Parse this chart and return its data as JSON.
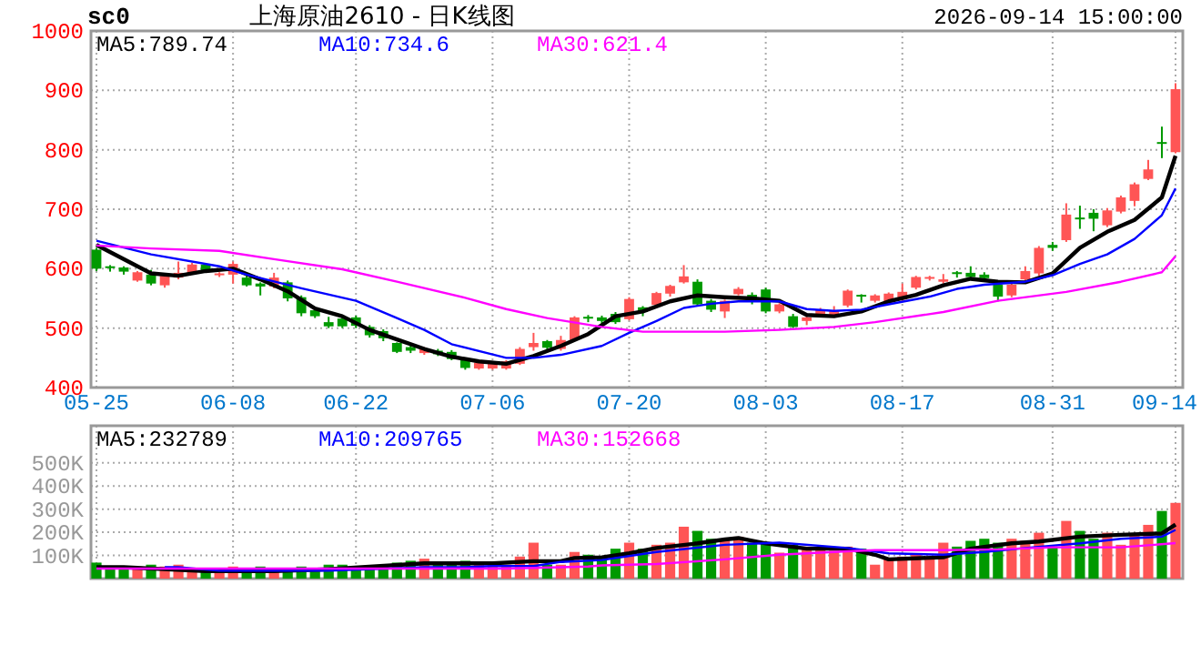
{
  "chart_data": [
    {
      "type": "candlestick",
      "title": "上海原油2610 - 日K线图",
      "subtitle": "sc0",
      "annotations": [
        "2026-09-14 15:00:00"
      ],
      "categories": [
        "05-25",
        null,
        null,
        null,
        null,
        null,
        null,
        null,
        null,
        null,
        "06-08",
        null,
        null,
        null,
        null,
        null,
        null,
        null,
        null,
        "06-22",
        null,
        null,
        null,
        null,
        null,
        null,
        null,
        null,
        null,
        "07-06",
        null,
        null,
        null,
        null,
        null,
        null,
        null,
        null,
        null,
        "07-20",
        null,
        null,
        null,
        null,
        null,
        null,
        null,
        null,
        null,
        "08-03",
        null,
        null,
        null,
        null,
        null,
        null,
        null,
        null,
        null,
        "08-17",
        null,
        null,
        null,
        null,
        null,
        null,
        null,
        null,
        null,
        null,
        "08-31",
        null,
        null,
        null,
        null,
        null,
        null,
        null,
        null,
        "09-14"
      ],
      "ohlc": [
        [
          632,
          635,
          596,
          600
        ],
        [
          604,
          606,
          595,
          602
        ],
        [
          602,
          604,
          590,
          595
        ],
        [
          580,
          596,
          578,
          594
        ],
        [
          590,
          598,
          572,
          575
        ],
        [
          572,
          590,
          568,
          588
        ],
        [
          585,
          612,
          582,
          593
        ],
        [
          592,
          610,
          590,
          607
        ],
        [
          607,
          608,
          594,
          595
        ],
        [
          589,
          594,
          586,
          592
        ],
        [
          590,
          612,
          575,
          608
        ],
        [
          585,
          590,
          570,
          572
        ],
        [
          575,
          577,
          555,
          570
        ],
        [
          570,
          593,
          567,
          585
        ],
        [
          577,
          580,
          545,
          550
        ],
        [
          552,
          555,
          520,
          525
        ],
        [
          530,
          531,
          517,
          520
        ],
        [
          510,
          519,
          500,
          503
        ],
        [
          516,
          520,
          500,
          503
        ],
        [
          518,
          521,
          500,
          504
        ],
        [
          502,
          505,
          484,
          488
        ],
        [
          495,
          498,
          478,
          483
        ],
        [
          475,
          476,
          458,
          460
        ],
        [
          468,
          475,
          458,
          462
        ],
        [
          458,
          468,
          455,
          465
        ],
        [
          462,
          465,
          453,
          456
        ],
        [
          460,
          463,
          446,
          448
        ],
        [
          447,
          450,
          430,
          433
        ],
        [
          432,
          445,
          430,
          442
        ],
        [
          432,
          443,
          430,
          440
        ],
        [
          432,
          446,
          430,
          444
        ],
        [
          440,
          468,
          438,
          465
        ],
        [
          468,
          492,
          462,
          475
        ],
        [
          478,
          480,
          464,
          467
        ],
        [
          465,
          487,
          462,
          480
        ],
        [
          480,
          520,
          478,
          518
        ],
        [
          519,
          522,
          510,
          517
        ],
        [
          518,
          521,
          508,
          512
        ],
        [
          524,
          527,
          507,
          510
        ],
        [
          515,
          552,
          513,
          549
        ],
        [
          535,
          537,
          520,
          527
        ],
        [
          539,
          561,
          537,
          559
        ],
        [
          558,
          573,
          553,
          571
        ],
        [
          577,
          606,
          575,
          587
        ],
        [
          578,
          582,
          537,
          540
        ],
        [
          546,
          549,
          527,
          531
        ],
        [
          528,
          548,
          517,
          546
        ],
        [
          557,
          569,
          555,
          566
        ],
        [
          556,
          560,
          540,
          546
        ],
        [
          565,
          568,
          525,
          528
        ],
        [
          528,
          542,
          525,
          540
        ],
        [
          520,
          524,
          500,
          502
        ],
        [
          512,
          520,
          505,
          518
        ],
        [
          520,
          534,
          518,
          531
        ],
        [
          520,
          537,
          518,
          530
        ],
        [
          538,
          565,
          535,
          563
        ],
        [
          556,
          557,
          543,
          553
        ],
        [
          546,
          557,
          543,
          555
        ],
        [
          543,
          560,
          540,
          558
        ],
        [
          548,
          575,
          545,
          561
        ],
        [
          568,
          588,
          565,
          586
        ],
        [
          583,
          588,
          580,
          586
        ],
        [
          578,
          591,
          575,
          582
        ],
        [
          594,
          596,
          585,
          592
        ],
        [
          593,
          604,
          583,
          586
        ],
        [
          590,
          594,
          580,
          584
        ],
        [
          573,
          576,
          545,
          553
        ],
        [
          555,
          580,
          552,
          573
        ],
        [
          582,
          604,
          580,
          596
        ],
        [
          592,
          638,
          588,
          635
        ],
        [
          640,
          645,
          630,
          635
        ],
        [
          648,
          710,
          645,
          691
        ],
        [
          686,
          706,
          667,
          684
        ],
        [
          694,
          700,
          663,
          684
        ],
        [
          673,
          702,
          670,
          698
        ],
        [
          696,
          723,
          693,
          720
        ],
        [
          714,
          745,
          705,
          742
        ],
        [
          751,
          783,
          749,
          767
        ],
        [
          813,
          839,
          786,
          810
        ],
        [
          796,
          912,
          794,
          902
        ]
      ],
      "colors": [
        "#009900",
        "#009900",
        "#009900",
        "#ff5555",
        "#009900",
        "#ff5555",
        "#ff5555",
        "#ff5555",
        "#009900",
        "#ff5555",
        "#ff5555",
        "#009900",
        "#009900",
        "#ff5555",
        "#009900",
        "#009900",
        "#009900",
        "#009900",
        "#009900",
        "#009900",
        "#009900",
        "#009900",
        "#009900",
        "#009900",
        "#ff5555",
        "#009900",
        "#009900",
        "#009900",
        "#ff5555",
        "#ff5555",
        "#ff5555",
        "#ff5555",
        "#ff5555",
        "#009900",
        "#ff5555",
        "#ff5555",
        "#009900",
        "#009900",
        "#009900",
        "#ff5555",
        "#009900",
        "#ff5555",
        "#ff5555",
        "#ff5555",
        "#009900",
        "#009900",
        "#ff5555",
        "#ff5555",
        "#009900",
        "#009900",
        "#ff5555",
        "#009900",
        "#ff5555",
        "#ff5555",
        "#ff5555",
        "#ff5555",
        "#009900",
        "#ff5555",
        "#ff5555",
        "#ff5555",
        "#ff5555",
        "#ff5555",
        "#ff5555",
        "#009900",
        "#009900",
        "#009900",
        "#009900",
        "#ff5555",
        "#ff5555",
        "#ff5555",
        "#009900",
        "#ff5555",
        "#009900",
        "#009900",
        "#ff5555",
        "#ff5555",
        "#ff5555",
        "#ff5555",
        "#009900",
        "#ff5555"
      ],
      "series": [
        {
          "type": "line",
          "name": "MA5:789.74",
          "color": "#000000",
          "values": [
            640,
            null,
            null,
            null,
            592,
            null,
            588,
            null,
            596,
            null,
            600,
            null,
            582,
            null,
            562,
            null,
            533,
            null,
            520,
            null,
            497,
            null,
            481,
            null,
            465,
            null,
            452,
            null,
            444,
            null,
            440,
            null,
            453,
            null,
            470,
            null,
            490,
            null,
            520,
            null,
            528,
            null,
            545,
            null,
            555,
            null,
            552,
            null,
            550,
            null,
            546,
            null,
            522,
            null,
            520,
            null,
            528,
            null,
            545,
            null,
            556,
            null,
            572,
            null,
            583,
            null,
            578,
            null,
            577,
            null,
            592,
            null,
            635,
            null,
            662,
            null,
            682,
            null,
            720,
            790
          ]
        },
        {
          "type": "line",
          "name": "MA10:734.6",
          "color": "#0000ff",
          "values": [
            647,
            null,
            null,
            null,
            624,
            null,
            null,
            null,
            null,
            604,
            null,
            590,
            null,
            null,
            null,
            567,
            null,
            null,
            null,
            546,
            null,
            null,
            517,
            null,
            497,
            null,
            473,
            null,
            null,
            null,
            450,
            null,
            450,
            null,
            455,
            null,
            null,
            470,
            null,
            492,
            null,
            512,
            null,
            534,
            null,
            541,
            null,
            545,
            null,
            null,
            545,
            null,
            532,
            null,
            529,
            null,
            531,
            null,
            540,
            null,
            null,
            553,
            null,
            566,
            null,
            573,
            null,
            null,
            578,
            null,
            589,
            null,
            608,
            null,
            624,
            null,
            650,
            null,
            690,
            735
          ]
        },
        {
          "type": "line",
          "name": "MA30:621.4",
          "color": "#ff00ff",
          "values": [
            639,
            null,
            null,
            null,
            634,
            null,
            null,
            null,
            null,
            630,
            null,
            null,
            null,
            616,
            null,
            null,
            null,
            null,
            599,
            null,
            null,
            null,
            578,
            null,
            null,
            null,
            null,
            551,
            null,
            null,
            532,
            null,
            null,
            517,
            null,
            null,
            null,
            502,
            null,
            null,
            494,
            null,
            null,
            null,
            null,
            null,
            494,
            null,
            null,
            null,
            497,
            null,
            null,
            null,
            502,
            null,
            null,
            510,
            null,
            null,
            null,
            null,
            527,
            null,
            null,
            null,
            546,
            null,
            null,
            null,
            null,
            561,
            null,
            null,
            null,
            578,
            null,
            null,
            594,
            621
          ]
        }
      ],
      "ylim": [
        400,
        1000
      ],
      "yticks": [
        400,
        500,
        600,
        700,
        800,
        900,
        1000
      ],
      "grid": true,
      "legend": "top"
    },
    {
      "type": "bar",
      "categories": [
        null,
        null,
        null,
        null,
        null,
        null,
        null,
        null,
        null,
        null,
        null,
        null,
        null,
        null,
        null,
        null,
        null,
        null,
        null,
        null,
        null,
        null,
        null,
        null,
        null,
        null,
        null,
        null,
        null,
        null,
        null,
        null,
        null,
        null,
        null,
        null,
        null,
        null,
        null,
        null,
        null,
        null,
        null,
        null,
        null,
        null,
        null,
        null,
        null,
        null,
        null,
        null,
        null,
        null,
        null,
        null,
        null,
        null,
        null,
        null,
        null,
        null,
        null,
        null,
        null,
        null,
        null,
        null,
        null,
        null,
        null,
        null,
        null,
        null,
        null,
        null,
        null,
        null,
        null,
        null
      ],
      "tick_labels": "y",
      "values": [
        69000,
        52000,
        52000,
        52000,
        60000,
        52000,
        60000,
        43000,
        43000,
        37000,
        52000,
        37000,
        52000,
        37000,
        37000,
        52000,
        37000,
        60000,
        60000,
        43000,
        52000,
        52000,
        69000,
        77000,
        86000,
        69000,
        69000,
        77000,
        60000,
        60000,
        60000,
        95000,
        155000,
        60000,
        60000,
        115000,
        103000,
        95000,
        129000,
        155000,
        129000,
        146000,
        155000,
        224000,
        206000,
        172000,
        172000,
        181000,
        155000,
        155000,
        112000,
        146000,
        138000,
        129000,
        120000,
        138000,
        129000,
        60000,
        86000,
        95000,
        103000,
        95000,
        155000,
        138000,
        163000,
        172000,
        155000,
        172000,
        163000,
        198000,
        138000,
        249000,
        206000,
        172000,
        198000,
        146000,
        189000,
        232000,
        292000,
        327000
      ],
      "colors": [
        "#009900",
        "#009900",
        "#009900",
        "#ff5555",
        "#009900",
        "#ff5555",
        "#ff5555",
        "#ff5555",
        "#009900",
        "#ff5555",
        "#ff5555",
        "#009900",
        "#009900",
        "#ff5555",
        "#009900",
        "#009900",
        "#009900",
        "#009900",
        "#009900",
        "#009900",
        "#009900",
        "#009900",
        "#009900",
        "#009900",
        "#ff5555",
        "#009900",
        "#009900",
        "#009900",
        "#ff5555",
        "#ff5555",
        "#ff5555",
        "#ff5555",
        "#ff5555",
        "#009900",
        "#ff5555",
        "#ff5555",
        "#009900",
        "#009900",
        "#009900",
        "#ff5555",
        "#009900",
        "#ff5555",
        "#ff5555",
        "#ff5555",
        "#009900",
        "#009900",
        "#ff5555",
        "#ff5555",
        "#009900",
        "#009900",
        "#ff5555",
        "#009900",
        "#ff5555",
        "#ff5555",
        "#ff5555",
        "#ff5555",
        "#009900",
        "#ff5555",
        "#ff5555",
        "#ff5555",
        "#ff5555",
        "#ff5555",
        "#ff5555",
        "#009900",
        "#009900",
        "#009900",
        "#009900",
        "#ff5555",
        "#ff5555",
        "#ff5555",
        "#009900",
        "#ff5555",
        "#009900",
        "#009900",
        "#ff5555",
        "#ff5555",
        "#ff5555",
        "#ff5555",
        "#009900",
        "#ff5555"
      ],
      "series": [
        {
          "type": "line",
          "name": "MA5:232789",
          "color": "#000000",
          "values": [
            49000,
            null,
            49000,
            null,
            null,
            null,
            null,
            null,
            32000,
            null,
            null,
            null,
            null,
            32000,
            null,
            null,
            null,
            40000,
            null,
            null,
            null,
            null,
            null,
            null,
            66000,
            null,
            null,
            null,
            null,
            66000,
            null,
            null,
            75000,
            null,
            75000,
            89000,
            null,
            92000,
            null,
            109000,
            null,
            132000,
            null,
            null,
            152000,
            null,
            169000,
            175000,
            null,
            152000,
            null,
            null,
            129000,
            null,
            null,
            129000,
            null,
            103000,
            83000,
            null,
            null,
            null,
            92000,
            null,
            129000,
            null,
            null,
            152000,
            null,
            160000,
            null,
            null,
            181000,
            null,
            null,
            189000,
            null,
            null,
            195000,
            233000
          ]
        },
        {
          "type": "line",
          "name": "MA10:209765",
          "color": "#0000ff",
          "values": [
            null,
            null,
            null,
            null,
            null,
            49000,
            49000,
            null,
            null,
            34000,
            null,
            null,
            null,
            null,
            null,
            null,
            null,
            34000,
            null,
            null,
            null,
            null,
            null,
            null,
            49000,
            null,
            null,
            49000,
            null,
            54000,
            null,
            null,
            54000,
            null,
            72000,
            null,
            null,
            80000,
            null,
            null,
            null,
            115000,
            null,
            null,
            null,
            null,
            146000,
            null,
            null,
            null,
            155000,
            null,
            null,
            null,
            null,
            132000,
            null,
            null,
            109000,
            null,
            null,
            null,
            103000,
            null,
            null,
            115000,
            null,
            null,
            132000,
            null,
            null,
            null,
            152000,
            null,
            null,
            172000,
            null,
            null,
            181000,
            210000
          ]
        },
        {
          "type": "line",
          "name": "MA30:152668",
          "color": "#ff00ff",
          "values": [
            43000,
            null,
            null,
            null,
            null,
            null,
            null,
            null,
            null,
            null,
            null,
            null,
            null,
            null,
            null,
            null,
            null,
            null,
            null,
            null,
            null,
            null,
            null,
            null,
            null,
            null,
            null,
            null,
            null,
            null,
            43000,
            null,
            null,
            null,
            null,
            null,
            52000,
            57000,
            null,
            null,
            null,
            63000,
            null,
            null,
            null,
            null,
            83000,
            null,
            null,
            null,
            103000,
            null,
            null,
            null,
            null,
            118000,
            null,
            123000,
            null,
            null,
            null,
            null,
            123000,
            null,
            null,
            null,
            126000,
            null,
            null,
            null,
            135000,
            null,
            null,
            null,
            null,
            135000,
            null,
            null,
            null,
            153000
          ]
        }
      ],
      "ylim": [
        0,
        660000
      ],
      "yticks": [
        {
          "value": 100000,
          "label": "100K"
        },
        {
          "value": 200000,
          "label": "200K"
        },
        {
          "value": 300000,
          "label": "300K"
        },
        {
          "value": 400000,
          "label": "400K"
        },
        {
          "value": 500000,
          "label": "500K"
        }
      ],
      "grid": true,
      "legend": "top"
    }
  ]
}
